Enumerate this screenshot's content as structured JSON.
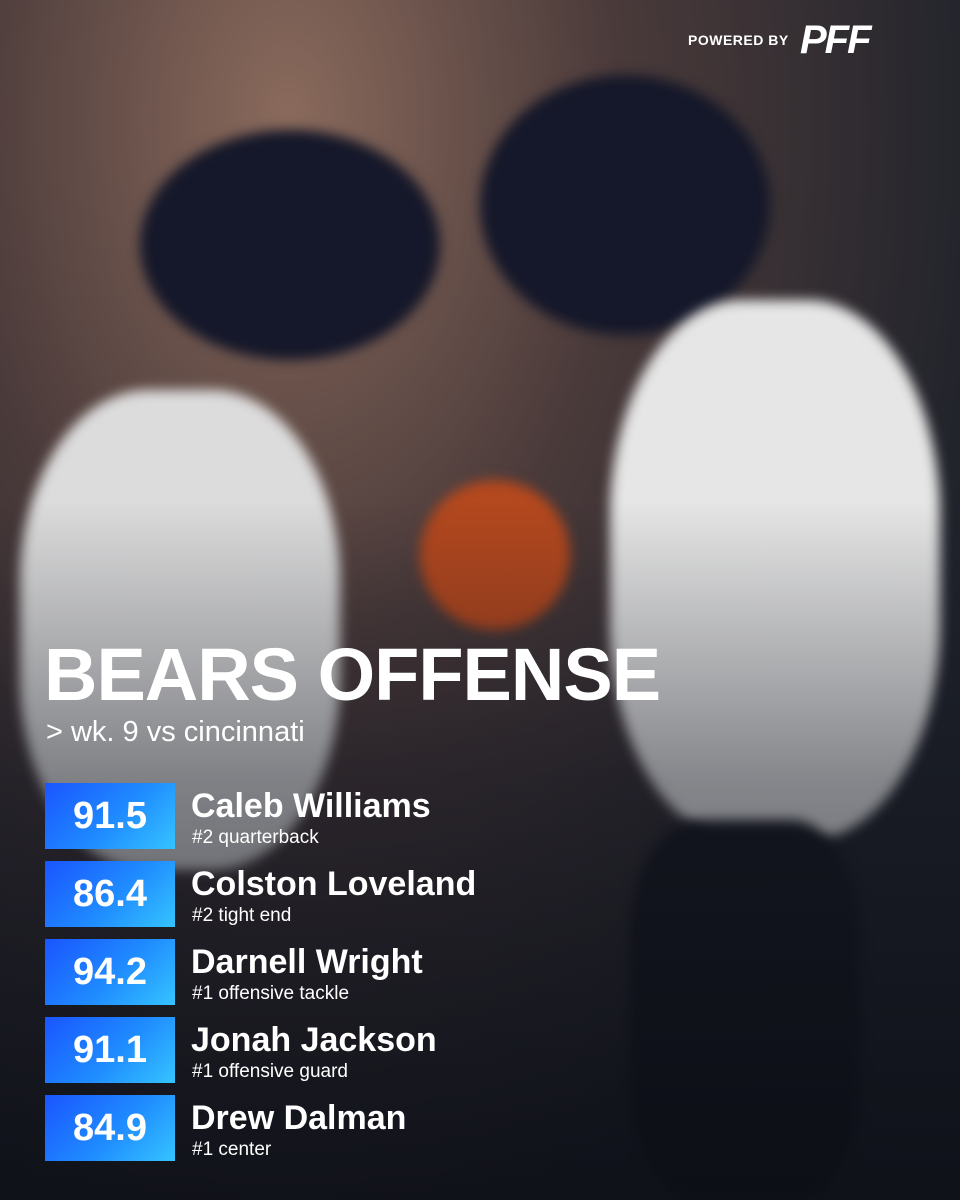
{
  "header": {
    "powered_by": "POWERED BY",
    "logo": "PFF"
  },
  "title": "BEARS OFFENSE",
  "subtitle": "> wk. 9 vs cincinnati",
  "players": [
    {
      "grade": "91.5",
      "name": "Caleb Williams",
      "rank": "#2 quarterback"
    },
    {
      "grade": "86.4",
      "name": "Colston Loveland",
      "rank": "#2 tight end"
    },
    {
      "grade": "94.2",
      "name": "Darnell Wright",
      "rank": "#1 offensive tackle"
    },
    {
      "grade": "91.1",
      "name": "Jonah Jackson",
      "rank": "#1 offensive guard"
    },
    {
      "grade": "84.9",
      "name": "Drew Dalman",
      "rank": "#1 center"
    }
  ]
}
